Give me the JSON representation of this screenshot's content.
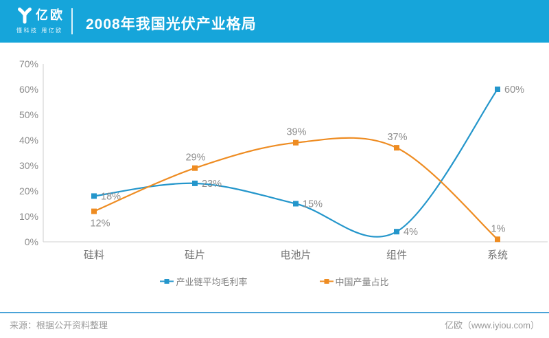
{
  "header": {
    "brand": "亿欧",
    "tagline": "懂科技 用亿欧",
    "title": "2008年我国光伏产业格局",
    "bg_color": "#16a5da"
  },
  "chart_data": {
    "type": "line",
    "title": "2008年我国光伏产业格局",
    "categories": [
      "硅料",
      "硅片",
      "电池片",
      "组件",
      "系统"
    ],
    "series": [
      {
        "name": "产业链平均毛利率",
        "color": "#2496cb",
        "values": [
          18,
          23,
          15,
          4,
          60
        ],
        "labels": [
          "18%",
          "23%",
          "15%",
          "4%",
          "60%"
        ],
        "label_pos": [
          "right",
          "right",
          "right",
          "right",
          "right"
        ]
      },
      {
        "name": "中国产量占比",
        "color": "#ee8c22",
        "values": [
          12,
          29,
          39,
          37,
          1
        ],
        "labels": [
          "12%",
          "29%",
          "39%",
          "37%",
          "1%"
        ],
        "label_pos": [
          "below",
          "above",
          "above",
          "above",
          "above"
        ]
      }
    ],
    "ylim": [
      0,
      70
    ],
    "y_ticks": [
      "0%",
      "10%",
      "20%",
      "30%",
      "40%",
      "50%",
      "60%",
      "70%"
    ],
    "grid": false,
    "line_style": "smooth",
    "marker": "square",
    "legend_position": "bottom"
  },
  "footer": {
    "source": "来源：根据公开资料整理",
    "site": "亿欧（www.iyiou.com）",
    "divider_color": "#4aa3d8"
  }
}
